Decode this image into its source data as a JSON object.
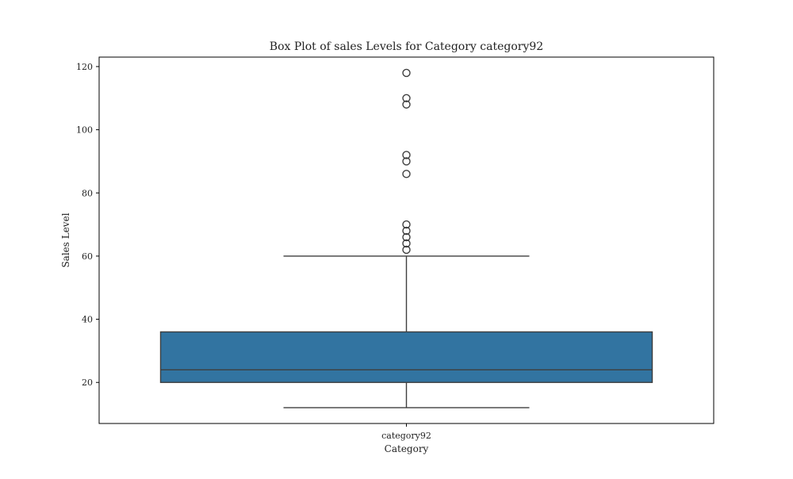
{
  "chart_data": {
    "type": "box",
    "title": "Box Plot of sales Levels for Category category92",
    "xlabel": "Category",
    "ylabel": "Sales Level",
    "categories": [
      "category92"
    ],
    "ylim": [
      7,
      123
    ],
    "yticks": [
      20,
      40,
      60,
      80,
      100,
      120
    ],
    "grid": false,
    "legend": "none",
    "boxes": [
      {
        "category": "category92",
        "whisker_low": 12,
        "q1": 20,
        "median": 24,
        "q3": 36,
        "whisker_high": 60,
        "outliers": [
          62,
          64,
          66,
          68,
          70,
          86,
          90,
          92,
          108,
          110,
          118
        ]
      }
    ],
    "colors": {
      "box_fill": "#3274a1",
      "line": "#3f3f3f",
      "frame": "#000000"
    }
  }
}
